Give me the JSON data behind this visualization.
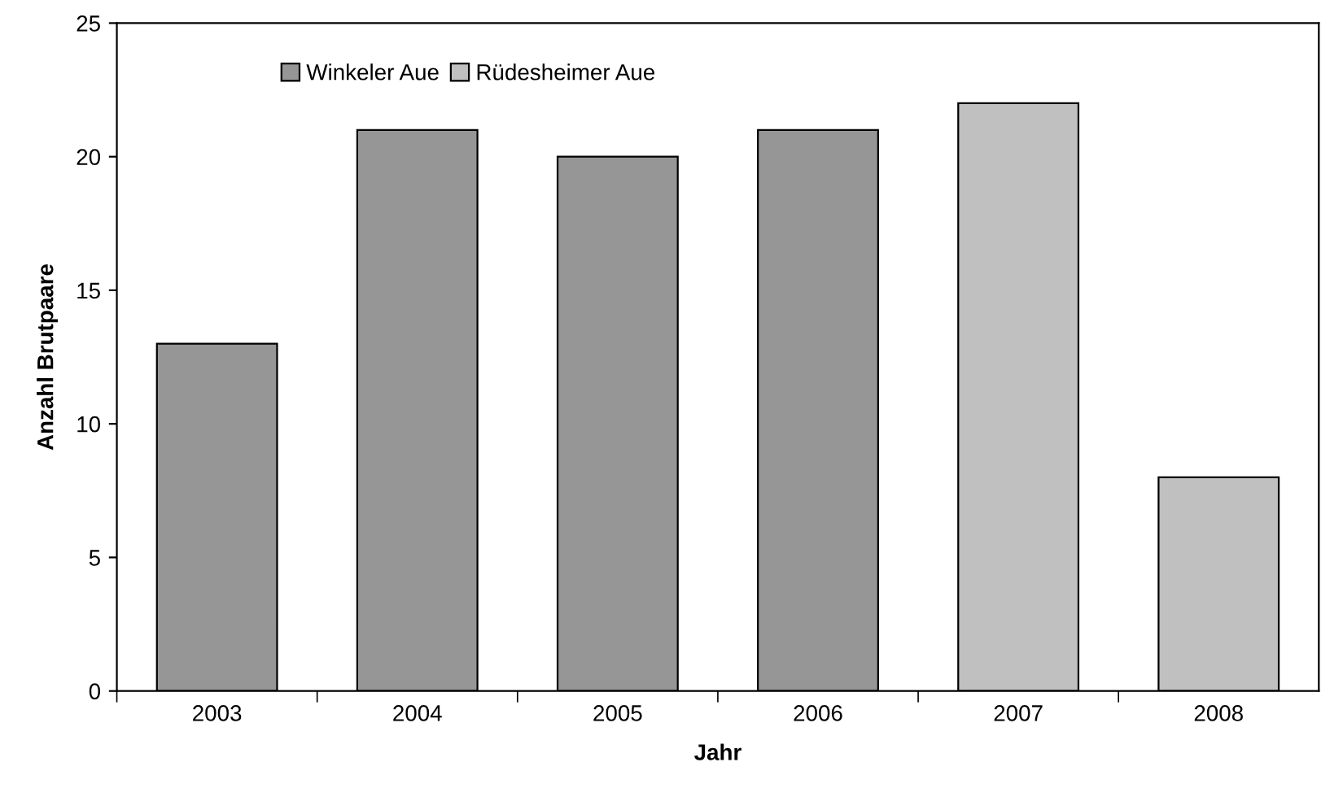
{
  "chart_data": {
    "type": "bar",
    "xlabel": "Jahr",
    "ylabel": "Anzahl Brutpaare",
    "categories": [
      "2003",
      "2004",
      "2005",
      "2006",
      "2007",
      "2008"
    ],
    "series": [
      {
        "name": "Winkeler Aue",
        "color": "#969696",
        "values": [
          13,
          21,
          20,
          21,
          null,
          null
        ]
      },
      {
        "name": "Rüdesheimer Aue",
        "color": "#c0c0c0",
        "values": [
          null,
          null,
          null,
          null,
          22,
          8
        ]
      }
    ],
    "ylim": [
      0,
      25
    ],
    "yticks": [
      0,
      5,
      10,
      15,
      20,
      25
    ],
    "grid": false,
    "legend": "top left"
  }
}
